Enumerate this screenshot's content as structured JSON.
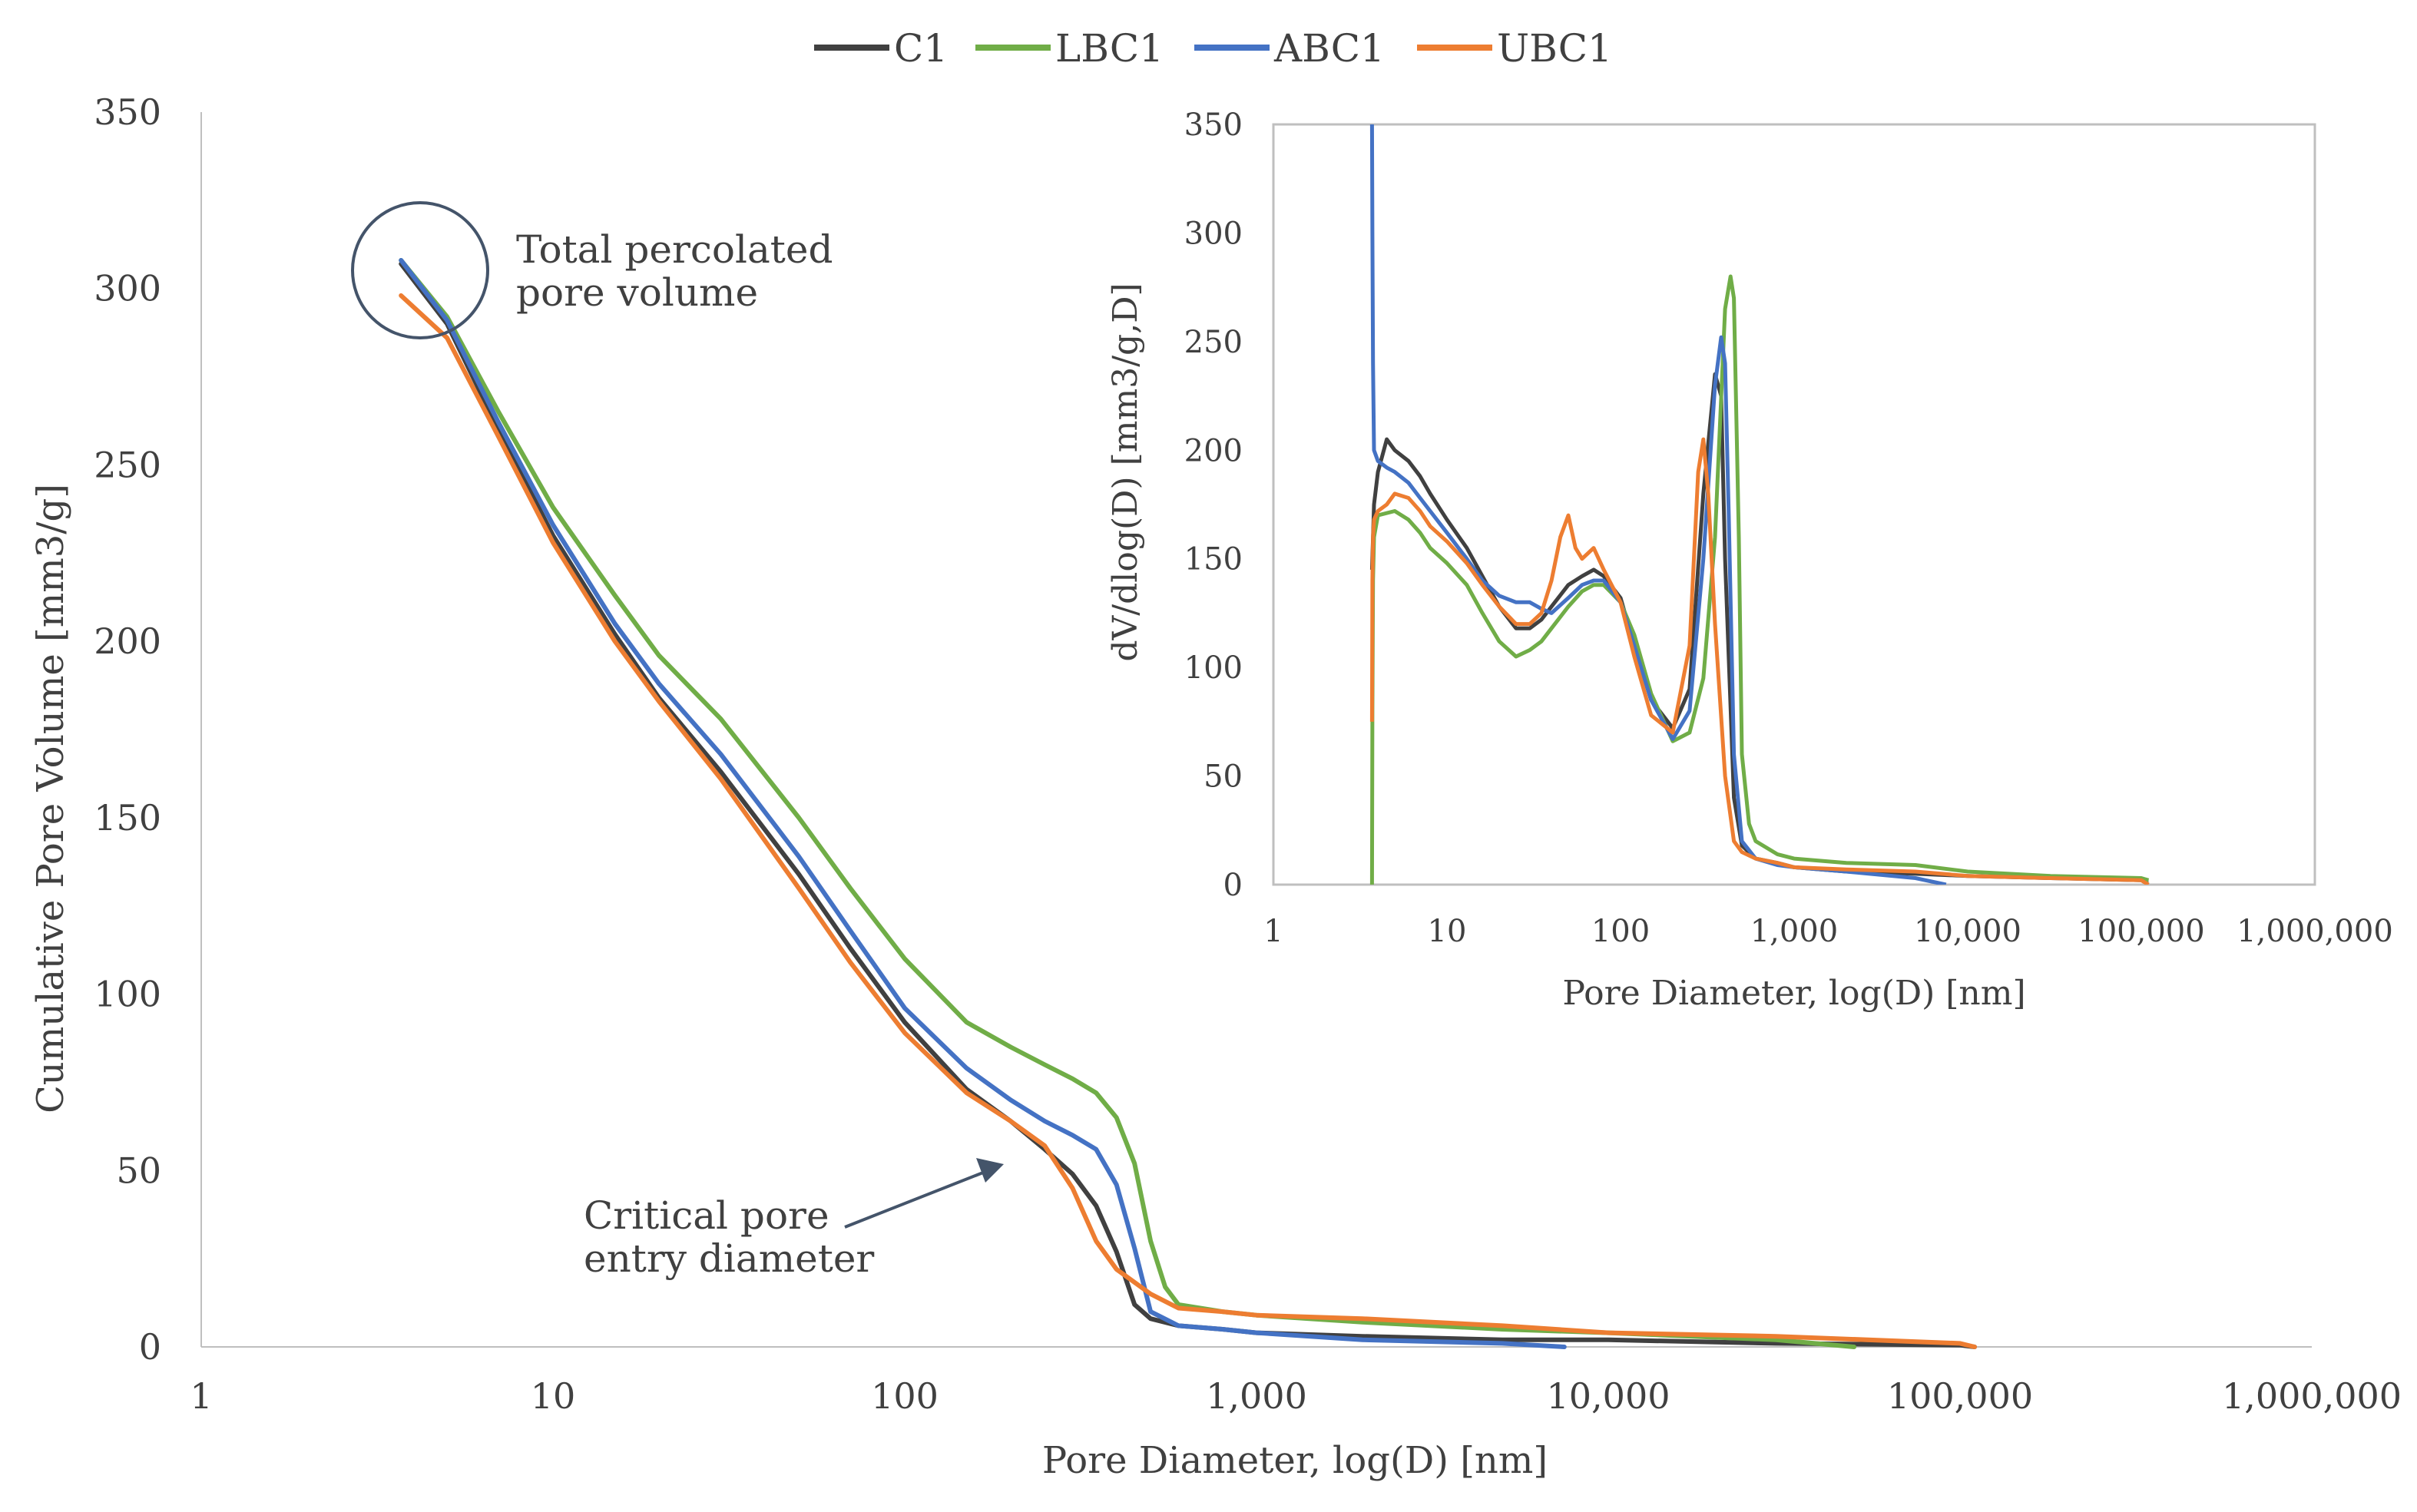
{
  "chart_data": [
    {
      "id": "main",
      "type": "line",
      "xscale": "log10",
      "xlabel": "Pore Diameter, log(D) [nm]",
      "ylabel": "Cumulative Pore Volume [mm3/g]",
      "xlim": [
        1,
        1000000
      ],
      "ylim": [
        0,
        350
      ],
      "xticks": [
        1,
        10,
        100,
        1000,
        10000,
        100000,
        1000000
      ],
      "xtick_labels": [
        "1",
        "10",
        "100",
        "1,000",
        "10,000",
        "100,000",
        "1,000,000"
      ],
      "yticks": [
        0,
        50,
        100,
        150,
        200,
        250,
        300,
        350
      ],
      "ytick_labels": [
        "0",
        "50",
        "100",
        "150",
        "200",
        "250",
        "300",
        "350"
      ],
      "grid": false,
      "legend": {
        "position": "top-center",
        "entries": [
          "C1",
          "LBC1",
          "ABC1",
          "UBC1"
        ]
      },
      "annotations": {
        "total": {
          "line1": "Total percolated",
          "line2": "pore volume",
          "target_x": 4.2,
          "target_y": 305
        },
        "critical": {
          "line1": "Critical pore",
          "line2": "entry diameter",
          "arrow_to_x": 230,
          "arrow_to_y": 50
        }
      },
      "series": [
        {
          "name": "C1",
          "color": "#404040",
          "x": [
            3.7,
            5,
            7,
            10,
            15,
            20,
            30,
            50,
            70,
            100,
            150,
            200,
            250,
            300,
            350,
            400,
            450,
            500,
            600,
            800,
            1000,
            2000,
            5000,
            10000,
            30000,
            100000,
            110000
          ],
          "y": [
            307,
            290,
            260,
            230,
            202,
            184,
            163,
            134,
            113,
            92,
            73,
            64,
            56,
            49,
            40,
            27,
            12,
            8,
            6,
            5,
            4,
            3,
            2,
            2,
            1,
            0.5,
            0
          ]
        },
        {
          "name": "LBC1",
          "color": "#70ad47",
          "x": [
            3.7,
            5,
            7,
            10,
            15,
            20,
            30,
            50,
            70,
            100,
            150,
            200,
            250,
            300,
            350,
            400,
            450,
            500,
            550,
            600,
            800,
            1000,
            2000,
            5000,
            10000,
            30000,
            50000
          ],
          "y": [
            308,
            292,
            265,
            238,
            213,
            196,
            178,
            150,
            130,
            110,
            92,
            85,
            80,
            76,
            72,
            65,
            52,
            30,
            17,
            12,
            10,
            9,
            7,
            5,
            4,
            2,
            0
          ]
        },
        {
          "name": "ABC1",
          "color": "#4472c4",
          "x": [
            3.7,
            5,
            7,
            10,
            15,
            20,
            30,
            50,
            70,
            100,
            150,
            200,
            250,
            300,
            350,
            400,
            450,
            500,
            600,
            800,
            1000,
            2000,
            5000,
            7500
          ],
          "y": [
            308,
            291,
            262,
            233,
            205,
            188,
            168,
            139,
            118,
            96,
            79,
            70,
            64,
            60,
            56,
            46,
            28,
            10,
            6,
            5,
            4,
            2,
            1,
            0
          ]
        },
        {
          "name": "UBC1",
          "color": "#ed7d31",
          "x": [
            3.7,
            5,
            7,
            10,
            15,
            20,
            30,
            50,
            70,
            100,
            150,
            200,
            250,
            300,
            350,
            400,
            500,
            600,
            800,
            1000,
            2000,
            5000,
            10000,
            30000,
            100000,
            110000
          ],
          "y": [
            298,
            286,
            258,
            228,
            200,
            183,
            161,
            130,
            109,
            89,
            72,
            64,
            57,
            45,
            30,
            22,
            15,
            11,
            10,
            9,
            8,
            6,
            4,
            3,
            1,
            0
          ]
        }
      ]
    },
    {
      "id": "inset",
      "type": "line",
      "xscale": "log10",
      "xlabel": "Pore Diameter, log(D) [nm]",
      "ylabel": "dV/dlog(D) [mm3/g,D]",
      "xlim": [
        1,
        1000000
      ],
      "ylim": [
        0,
        350
      ],
      "xticks": [
        1,
        10,
        100,
        1000,
        10000,
        100000,
        1000000
      ],
      "xtick_labels": [
        "1",
        "10",
        "100",
        "1,000",
        "10,000",
        "100,000",
        "1,000,000"
      ],
      "yticks": [
        0,
        50,
        100,
        150,
        200,
        250,
        300,
        350
      ],
      "ytick_labels": [
        "0",
        "50",
        "100",
        "150",
        "200",
        "250",
        "300",
        "350"
      ],
      "grid": false,
      "series": [
        {
          "name": "C1",
          "color": "#404040",
          "x": [
            3.7,
            3.8,
            4,
            4.5,
            5,
            6,
            7,
            8,
            10,
            13,
            16,
            20,
            25,
            30,
            35,
            40,
            50,
            60,
            70,
            80,
            100,
            120,
            150,
            200,
            250,
            300,
            350,
            380,
            400,
            450,
            500,
            600,
            800,
            1000,
            2000,
            5000,
            10000,
            30000,
            100000,
            110000
          ],
          "y": [
            145,
            175,
            190,
            205,
            200,
            195,
            188,
            180,
            168,
            155,
            142,
            128,
            118,
            118,
            122,
            128,
            138,
            142,
            145,
            142,
            132,
            110,
            85,
            72,
            90,
            180,
            235,
            225,
            150,
            40,
            18,
            12,
            10,
            8,
            6,
            5,
            4,
            3,
            2,
            2
          ]
        },
        {
          "name": "LBC1",
          "color": "#70ad47",
          "x": [
            3.7,
            3.72,
            3.75,
            3.8,
            4,
            5,
            6,
            7,
            8,
            10,
            13,
            16,
            20,
            25,
            30,
            35,
            40,
            50,
            60,
            70,
            80,
            100,
            120,
            150,
            200,
            250,
            300,
            350,
            400,
            430,
            450,
            480,
            500,
            550,
            600,
            800,
            1000,
            2000,
            5000,
            10000,
            30000,
            100000,
            110000
          ],
          "y": [
            0,
            80,
            140,
            160,
            170,
            172,
            168,
            162,
            155,
            148,
            138,
            125,
            112,
            105,
            108,
            112,
            118,
            128,
            135,
            138,
            138,
            130,
            115,
            88,
            66,
            70,
            95,
            160,
            265,
            280,
            270,
            160,
            60,
            28,
            20,
            14,
            12,
            10,
            9,
            6,
            4,
            3,
            2
          ]
        },
        {
          "name": "ABC1",
          "color": "#4472c4",
          "x": [
            3.7,
            3.72,
            3.75,
            3.8,
            4,
            4.5,
            5,
            6,
            7,
            8,
            10,
            13,
            16,
            20,
            25,
            30,
            35,
            40,
            50,
            60,
            70,
            80,
            100,
            120,
            150,
            200,
            250,
            300,
            350,
            380,
            400,
            420,
            450,
            500,
            600,
            800,
            1000,
            2000,
            5000,
            7500
          ],
          "y": [
            350,
            300,
            240,
            200,
            195,
            192,
            190,
            185,
            178,
            172,
            162,
            150,
            140,
            133,
            130,
            130,
            127,
            125,
            132,
            138,
            140,
            140,
            130,
            110,
            85,
            67,
            80,
            150,
            230,
            252,
            240,
            170,
            60,
            20,
            12,
            9,
            8,
            6,
            3,
            0
          ]
        },
        {
          "name": "UBC1",
          "color": "#ed7d31",
          "x": [
            3.7,
            3.72,
            3.75,
            3.8,
            4,
            4.5,
            5,
            6,
            7,
            8,
            10,
            13,
            16,
            20,
            25,
            30,
            35,
            40,
            45,
            50,
            55,
            60,
            70,
            80,
            100,
            120,
            150,
            200,
            250,
            280,
            300,
            320,
            350,
            400,
            450,
            500,
            600,
            800,
            1000,
            2000,
            5000,
            10000,
            30000,
            100000,
            110000
          ],
          "y": [
            75,
            140,
            160,
            168,
            172,
            175,
            180,
            178,
            172,
            165,
            158,
            148,
            138,
            128,
            120,
            120,
            125,
            140,
            160,
            170,
            155,
            150,
            155,
            145,
            130,
            105,
            78,
            70,
            110,
            190,
            205,
            180,
            120,
            50,
            20,
            15,
            12,
            10,
            8,
            7,
            6,
            4,
            3,
            2,
            0
          ]
        }
      ]
    }
  ]
}
